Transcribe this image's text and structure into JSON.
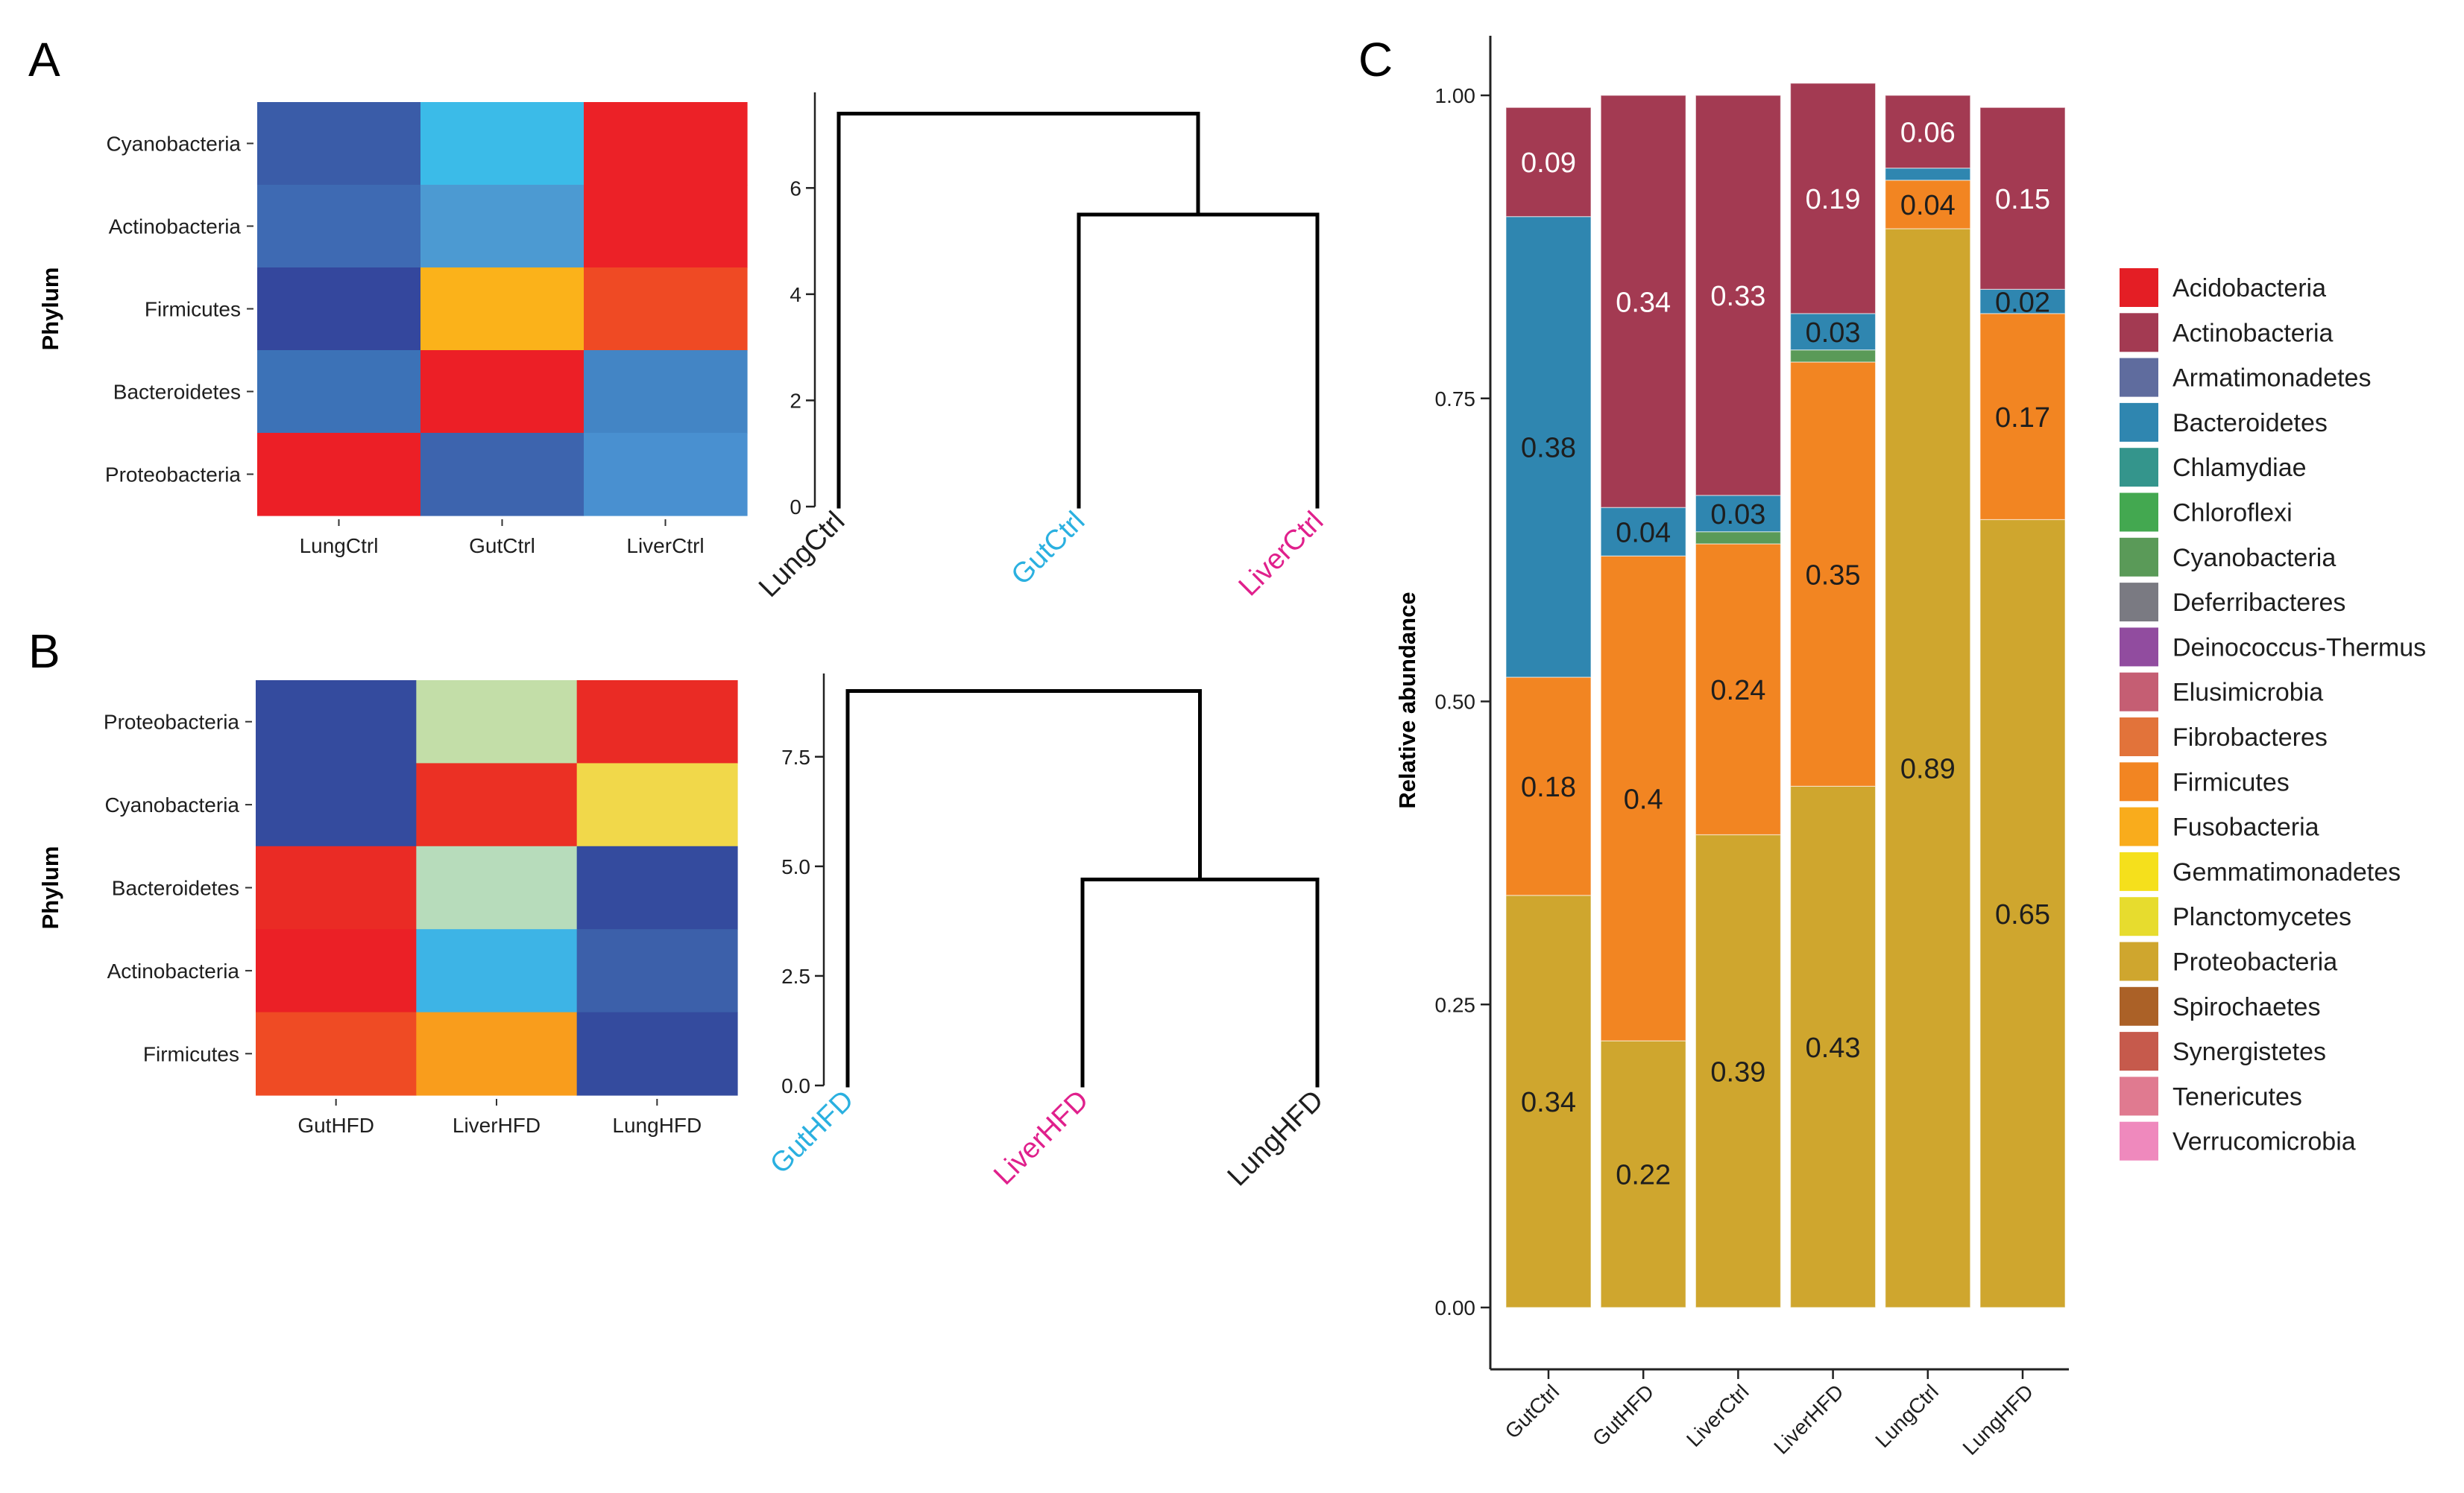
{
  "figure": {
    "panel_letters": [
      "A",
      "B",
      "C"
    ]
  },
  "chart_data": [
    {
      "panel": "A",
      "type": "heatmap",
      "ylabel": "Phylum",
      "rows": [
        "Cyanobacteria",
        "Actinobacteria",
        "Firmicutes",
        "Bacteroidetes",
        "Proteobacteria"
      ],
      "cols": [
        "LungCtrl",
        "GutCtrl",
        "LiverCtrl"
      ],
      "cell_colors": [
        [
          "#3a5ca8",
          "#3bbbe8",
          "#ec2127"
        ],
        [
          "#3e6ab3",
          "#4c9ad2",
          "#ec2127"
        ],
        [
          "#34479d",
          "#fbb21a",
          "#ef4a24"
        ],
        [
          "#3c72b7",
          "#ec1f26",
          "#4385c5"
        ],
        [
          "#ec1f26",
          "#3d64ae",
          "#4990d0"
        ]
      ],
      "dendrogram": {
        "leaves": [
          "LungCtrl",
          "GutCtrl",
          "LiverCtrl"
        ],
        "leaf_colors": [
          "#1e1e1e",
          "#2ab0e0",
          "#e0208c"
        ],
        "y_ticks": [
          "0",
          "2",
          "4",
          "6"
        ],
        "ylim": [
          0,
          7.8
        ],
        "merges": [
          {
            "left": "GutCtrl",
            "right": "LiverCtrl",
            "height": 5.5
          },
          {
            "left": "LungCtrl",
            "right": "GutCtrl+LiverCtrl",
            "height": 7.4
          }
        ]
      }
    },
    {
      "panel": "B",
      "type": "heatmap",
      "ylabel": "Phylum",
      "rows": [
        "Proteobacteria",
        "Cyanobacteria",
        "Bacteroidetes",
        "Actinobacteria",
        "Firmicutes"
      ],
      "cols": [
        "GutHFD",
        "LiverHFD",
        "LungHFD"
      ],
      "cell_colors": [
        [
          "#344b9e",
          "#c3dea8",
          "#ea2b25"
        ],
        [
          "#344b9e",
          "#eb3024",
          "#f1d84a"
        ],
        [
          "#ea2b25",
          "#b7dcbb",
          "#344b9e"
        ],
        [
          "#eb2026",
          "#3db4e6",
          "#3c60aa"
        ],
        [
          "#ef4b24",
          "#f99d1c",
          "#344b9e"
        ]
      ],
      "dendrogram": {
        "leaves": [
          "GutHFD",
          "LiverHFD",
          "LungHFD"
        ],
        "leaf_colors": [
          "#2ab0e0",
          "#e0208c",
          "#1e1e1e"
        ],
        "y_ticks": [
          "0.0",
          "2.5",
          "5.0",
          "7.5"
        ],
        "ylim": [
          0,
          9.4
        ],
        "merges": [
          {
            "left": "LiverHFD",
            "right": "LungHFD",
            "height": 4.7
          },
          {
            "left": "GutHFD",
            "right": "LiverHFD+LungHFD",
            "height": 9.0
          }
        ]
      }
    },
    {
      "panel": "C",
      "type": "bar",
      "stacked": true,
      "ylabel": "Relative abundance",
      "ylim": [
        0,
        1.0
      ],
      "y_ticks": [
        "0.00",
        "0.25",
        "0.50",
        "0.75",
        "1.00"
      ],
      "categories": [
        "GutCtrl",
        "GutHFD",
        "LiverCtrl",
        "LiverHFD",
        "LungCtrl",
        "LungHFD"
      ],
      "series": [
        {
          "name": "Proteobacteria",
          "color": "#cfa62e",
          "values": [
            0.34,
            0.22,
            0.39,
            0.43,
            0.89,
            0.65
          ],
          "labels": [
            "0.34",
            "0.22",
            "0.39",
            "0.43",
            "0.89",
            "0.65"
          ],
          "label_color": "#1e1e1e"
        },
        {
          "name": "Firmicutes",
          "color": "#f28522",
          "values": [
            0.18,
            0.4,
            0.24,
            0.35,
            0.04,
            0.17
          ],
          "labels": [
            "0.18",
            "0.4",
            "0.24",
            "0.35",
            "0.04",
            "0.17"
          ],
          "label_color": "#1e1e1e"
        },
        {
          "name": "Cyanobacteria",
          "color": "#5a9a58",
          "values": [
            0.0,
            0.0,
            0.01,
            0.01,
            0.0,
            0.0
          ],
          "labels": [
            "",
            "",
            "",
            "",
            "",
            ""
          ],
          "label_color": "#1e1e1e"
        },
        {
          "name": "Bacteroidetes",
          "color": "#2f86b0",
          "values": [
            0.38,
            0.04,
            0.03,
            0.03,
            0.01,
            0.02
          ],
          "labels": [
            "0.38",
            "0.04",
            "0.03",
            "0.03",
            "",
            "0.02"
          ],
          "label_color": "#1e1e1e"
        },
        {
          "name": "Actinobacteria",
          "color": "#a33a52",
          "values": [
            0.09,
            0.34,
            0.33,
            0.19,
            0.06,
            0.15
          ],
          "labels": [
            "0.09",
            "0.34",
            "0.33",
            "0.19",
            "0.06",
            "0.15"
          ],
          "label_color": "#ffffff"
        }
      ],
      "legend": {
        "position": "right",
        "items": [
          {
            "name": "Acidobacteria",
            "color": "#e41e25"
          },
          {
            "name": "Actinobacteria",
            "color": "#a33a52"
          },
          {
            "name": "Armatimonadetes",
            "color": "#5f6c9e"
          },
          {
            "name": "Bacteroidetes",
            "color": "#2f86b0"
          },
          {
            "name": "Chlamydiae",
            "color": "#34958c"
          },
          {
            "name": "Chloroflexi",
            "color": "#43a850"
          },
          {
            "name": "Cyanobacteria",
            "color": "#5a9a58"
          },
          {
            "name": "Deferribacteres",
            "color": "#7a7a82"
          },
          {
            "name": "Deinococcus-Thermus",
            "color": "#914c9f"
          },
          {
            "name": "Elusimicrobia",
            "color": "#c55e73"
          },
          {
            "name": "Fibrobacteres",
            "color": "#e2733a"
          },
          {
            "name": "Firmicutes",
            "color": "#f28522"
          },
          {
            "name": "Fusobacteria",
            "color": "#f9ac1c"
          },
          {
            "name": "Gemmatimonadetes",
            "color": "#f5e01c"
          },
          {
            "name": "Planctomycetes",
            "color": "#e7dc2e"
          },
          {
            "name": "Proteobacteria",
            "color": "#cfa62e"
          },
          {
            "name": "Spirochaetes",
            "color": "#ab6127"
          },
          {
            "name": "Synergistetes",
            "color": "#c65a4c"
          },
          {
            "name": "Tenericutes",
            "color": "#e07a90"
          },
          {
            "name": "Verrucomicrobia",
            "color": "#ef89bd"
          }
        ]
      }
    }
  ]
}
